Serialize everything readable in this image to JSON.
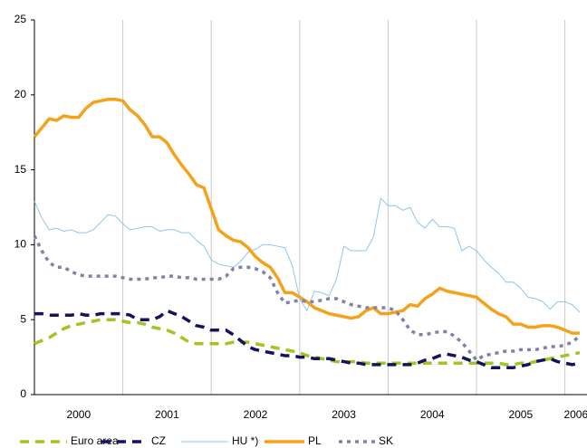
{
  "chart_data": {
    "type": "line",
    "x": [
      2000,
      2000.083,
      2000.167,
      2000.25,
      2000.333,
      2000.417,
      2000.5,
      2000.583,
      2000.667,
      2000.75,
      2000.833,
      2000.917,
      2001,
      2001.083,
      2001.167,
      2001.25,
      2001.333,
      2001.417,
      2001.5,
      2001.583,
      2001.667,
      2001.75,
      2001.833,
      2001.917,
      2002,
      2002.083,
      2002.167,
      2002.25,
      2002.333,
      2002.417,
      2002.5,
      2002.583,
      2002.667,
      2002.75,
      2002.833,
      2002.917,
      2003,
      2003.083,
      2003.167,
      2003.25,
      2003.333,
      2003.417,
      2003.5,
      2003.583,
      2003.667,
      2003.75,
      2003.833,
      2003.917,
      2004,
      2004.083,
      2004.167,
      2004.25,
      2004.333,
      2004.417,
      2004.5,
      2004.583,
      2004.667,
      2004.75,
      2004.833,
      2004.917,
      2005,
      2005.083,
      2005.167,
      2005.25,
      2005.333,
      2005.417,
      2005.5,
      2005.583,
      2005.667,
      2005.75,
      2005.833,
      2005.917,
      2006,
      2006.083,
      2006.167
    ],
    "xlim": [
      2000,
      2006.25
    ],
    "xticks": [
      {
        "value": 2000.5,
        "label": "2000"
      },
      {
        "value": 2001.5,
        "label": "2001"
      },
      {
        "value": 2002.5,
        "label": "2002"
      },
      {
        "value": 2003.5,
        "label": "2003"
      },
      {
        "value": 2004.5,
        "label": "2004"
      },
      {
        "value": 2005.5,
        "label": "2005"
      },
      {
        "value": 2006.125,
        "label": "2006"
      }
    ],
    "ylim": [
      0,
      25
    ],
    "yticks": [
      0,
      5,
      10,
      15,
      20,
      25
    ],
    "series": [
      {
        "name": "Euro area",
        "color": "#a2c523",
        "style": "dashed",
        "values": [
          3.4,
          3.6,
          3.8,
          4.1,
          4.4,
          4.6,
          4.7,
          4.8,
          4.9,
          5.0,
          5.0,
          5.0,
          4.9,
          4.8,
          4.8,
          4.7,
          4.5,
          4.4,
          4.3,
          4.1,
          3.8,
          3.5,
          3.4,
          3.4,
          3.4,
          3.4,
          3.4,
          3.5,
          3.5,
          3.5,
          3.4,
          3.3,
          3.2,
          3.1,
          3.0,
          2.9,
          2.8,
          2.6,
          2.5,
          2.4,
          2.3,
          2.2,
          2.2,
          2.2,
          2.2,
          2.1,
          2.1,
          2.1,
          2.1,
          2.1,
          2.1,
          2.1,
          2.1,
          2.1,
          2.1,
          2.1,
          2.1,
          2.1,
          2.1,
          2.1,
          2.1,
          2.1,
          2.1,
          2.1,
          2.0,
          2.0,
          2.1,
          2.1,
          2.2,
          2.3,
          2.4,
          2.5,
          2.6,
          2.7,
          2.8
        ]
      },
      {
        "name": "CZ",
        "color": "#14145e",
        "style": "dashed",
        "values": [
          5.4,
          5.4,
          5.3,
          5.3,
          5.3,
          5.3,
          5.4,
          5.3,
          5.3,
          5.4,
          5.4,
          5.4,
          5.4,
          5.3,
          5.0,
          5.0,
          5.0,
          5.2,
          5.6,
          5.4,
          5.2,
          4.9,
          4.6,
          4.5,
          4.3,
          4.3,
          4.3,
          4.0,
          3.6,
          3.2,
          3.0,
          2.9,
          2.8,
          2.7,
          2.6,
          2.6,
          2.5,
          2.5,
          2.4,
          2.4,
          2.4,
          2.3,
          2.2,
          2.1,
          2.1,
          2.0,
          2.0,
          2.0,
          2.0,
          2.0,
          2.0,
          2.0,
          2.1,
          2.3,
          2.4,
          2.6,
          2.7,
          2.6,
          2.5,
          2.3,
          2.2,
          2.0,
          1.8,
          1.8,
          1.8,
          1.8,
          1.9,
          2.0,
          2.2,
          2.3,
          2.4,
          2.2,
          2.1,
          2.0,
          2.1
        ]
      },
      {
        "name": "HU *)",
        "color": "#8ec6ea",
        "style": "thin",
        "values": [
          12.9,
          11.8,
          11.0,
          11.1,
          10.9,
          11.0,
          10.8,
          10.8,
          11.0,
          11.5,
          12.0,
          11.9,
          11.4,
          11.0,
          11.1,
          11.2,
          11.2,
          10.9,
          11.0,
          11.0,
          10.8,
          10.8,
          10.3,
          9.9,
          9.0,
          8.7,
          8.6,
          8.5,
          8.9,
          9.5,
          9.7,
          10.0,
          10.0,
          9.9,
          9.8,
          8.6,
          6.4,
          5.6,
          6.9,
          6.8,
          6.6,
          7.7,
          9.9,
          9.6,
          9.6,
          9.6,
          10.5,
          13.1,
          12.6,
          12.6,
          12.3,
          12.5,
          11.5,
          11.1,
          11.7,
          11.2,
          11.2,
          11.1,
          9.6,
          9.9,
          9.6,
          9.0,
          8.5,
          8.1,
          7.5,
          7.5,
          7.1,
          6.5,
          6.4,
          6.2,
          5.7,
          6.2,
          6.2,
          6.0,
          5.5
        ]
      },
      {
        "name": "PL",
        "color": "#f5a21b",
        "style": "thick",
        "values": [
          17.2,
          17.8,
          18.4,
          18.3,
          18.6,
          18.5,
          18.5,
          19.1,
          19.5,
          19.6,
          19.7,
          19.7,
          19.6,
          19.0,
          18.6,
          18.0,
          17.2,
          17.2,
          16.8,
          16.0,
          15.3,
          14.7,
          14.0,
          13.8,
          12.4,
          11.0,
          10.6,
          10.3,
          10.2,
          9.8,
          9.2,
          8.8,
          8.5,
          7.8,
          6.8,
          6.8,
          6.5,
          6.2,
          5.8,
          5.6,
          5.4,
          5.3,
          5.2,
          5.1,
          5.2,
          5.6,
          5.8,
          5.4,
          5.4,
          5.5,
          5.6,
          6.0,
          5.9,
          6.4,
          6.7,
          7.1,
          6.9,
          6.8,
          6.7,
          6.6,
          6.5,
          6.1,
          5.7,
          5.4,
          5.2,
          4.7,
          4.7,
          4.5,
          4.5,
          4.6,
          4.6,
          4.5,
          4.3,
          4.1,
          4.1
        ]
      },
      {
        "name": "SK",
        "color": "#8282a6",
        "style": "dotted",
        "values": [
          10.6,
          9.6,
          8.8,
          8.5,
          8.5,
          8.2,
          8.0,
          7.9,
          7.9,
          7.9,
          7.9,
          7.9,
          7.8,
          7.7,
          7.7,
          7.7,
          7.8,
          7.8,
          7.9,
          7.9,
          7.8,
          7.8,
          7.7,
          7.7,
          7.7,
          7.7,
          7.9,
          8.4,
          8.5,
          8.5,
          8.4,
          8.2,
          7.8,
          6.8,
          6.1,
          6.2,
          6.3,
          6.2,
          6.2,
          6.3,
          6.4,
          6.4,
          6.2,
          6.0,
          5.9,
          5.8,
          5.8,
          5.8,
          5.8,
          5.6,
          5.0,
          4.3,
          4.0,
          4.0,
          4.1,
          4.2,
          4.2,
          3.9,
          3.5,
          2.9,
          2.3,
          2.6,
          2.7,
          2.8,
          2.9,
          2.9,
          3.0,
          3.0,
          3.0,
          3.1,
          3.2,
          3.2,
          3.3,
          3.5,
          3.9
        ]
      }
    ]
  }
}
